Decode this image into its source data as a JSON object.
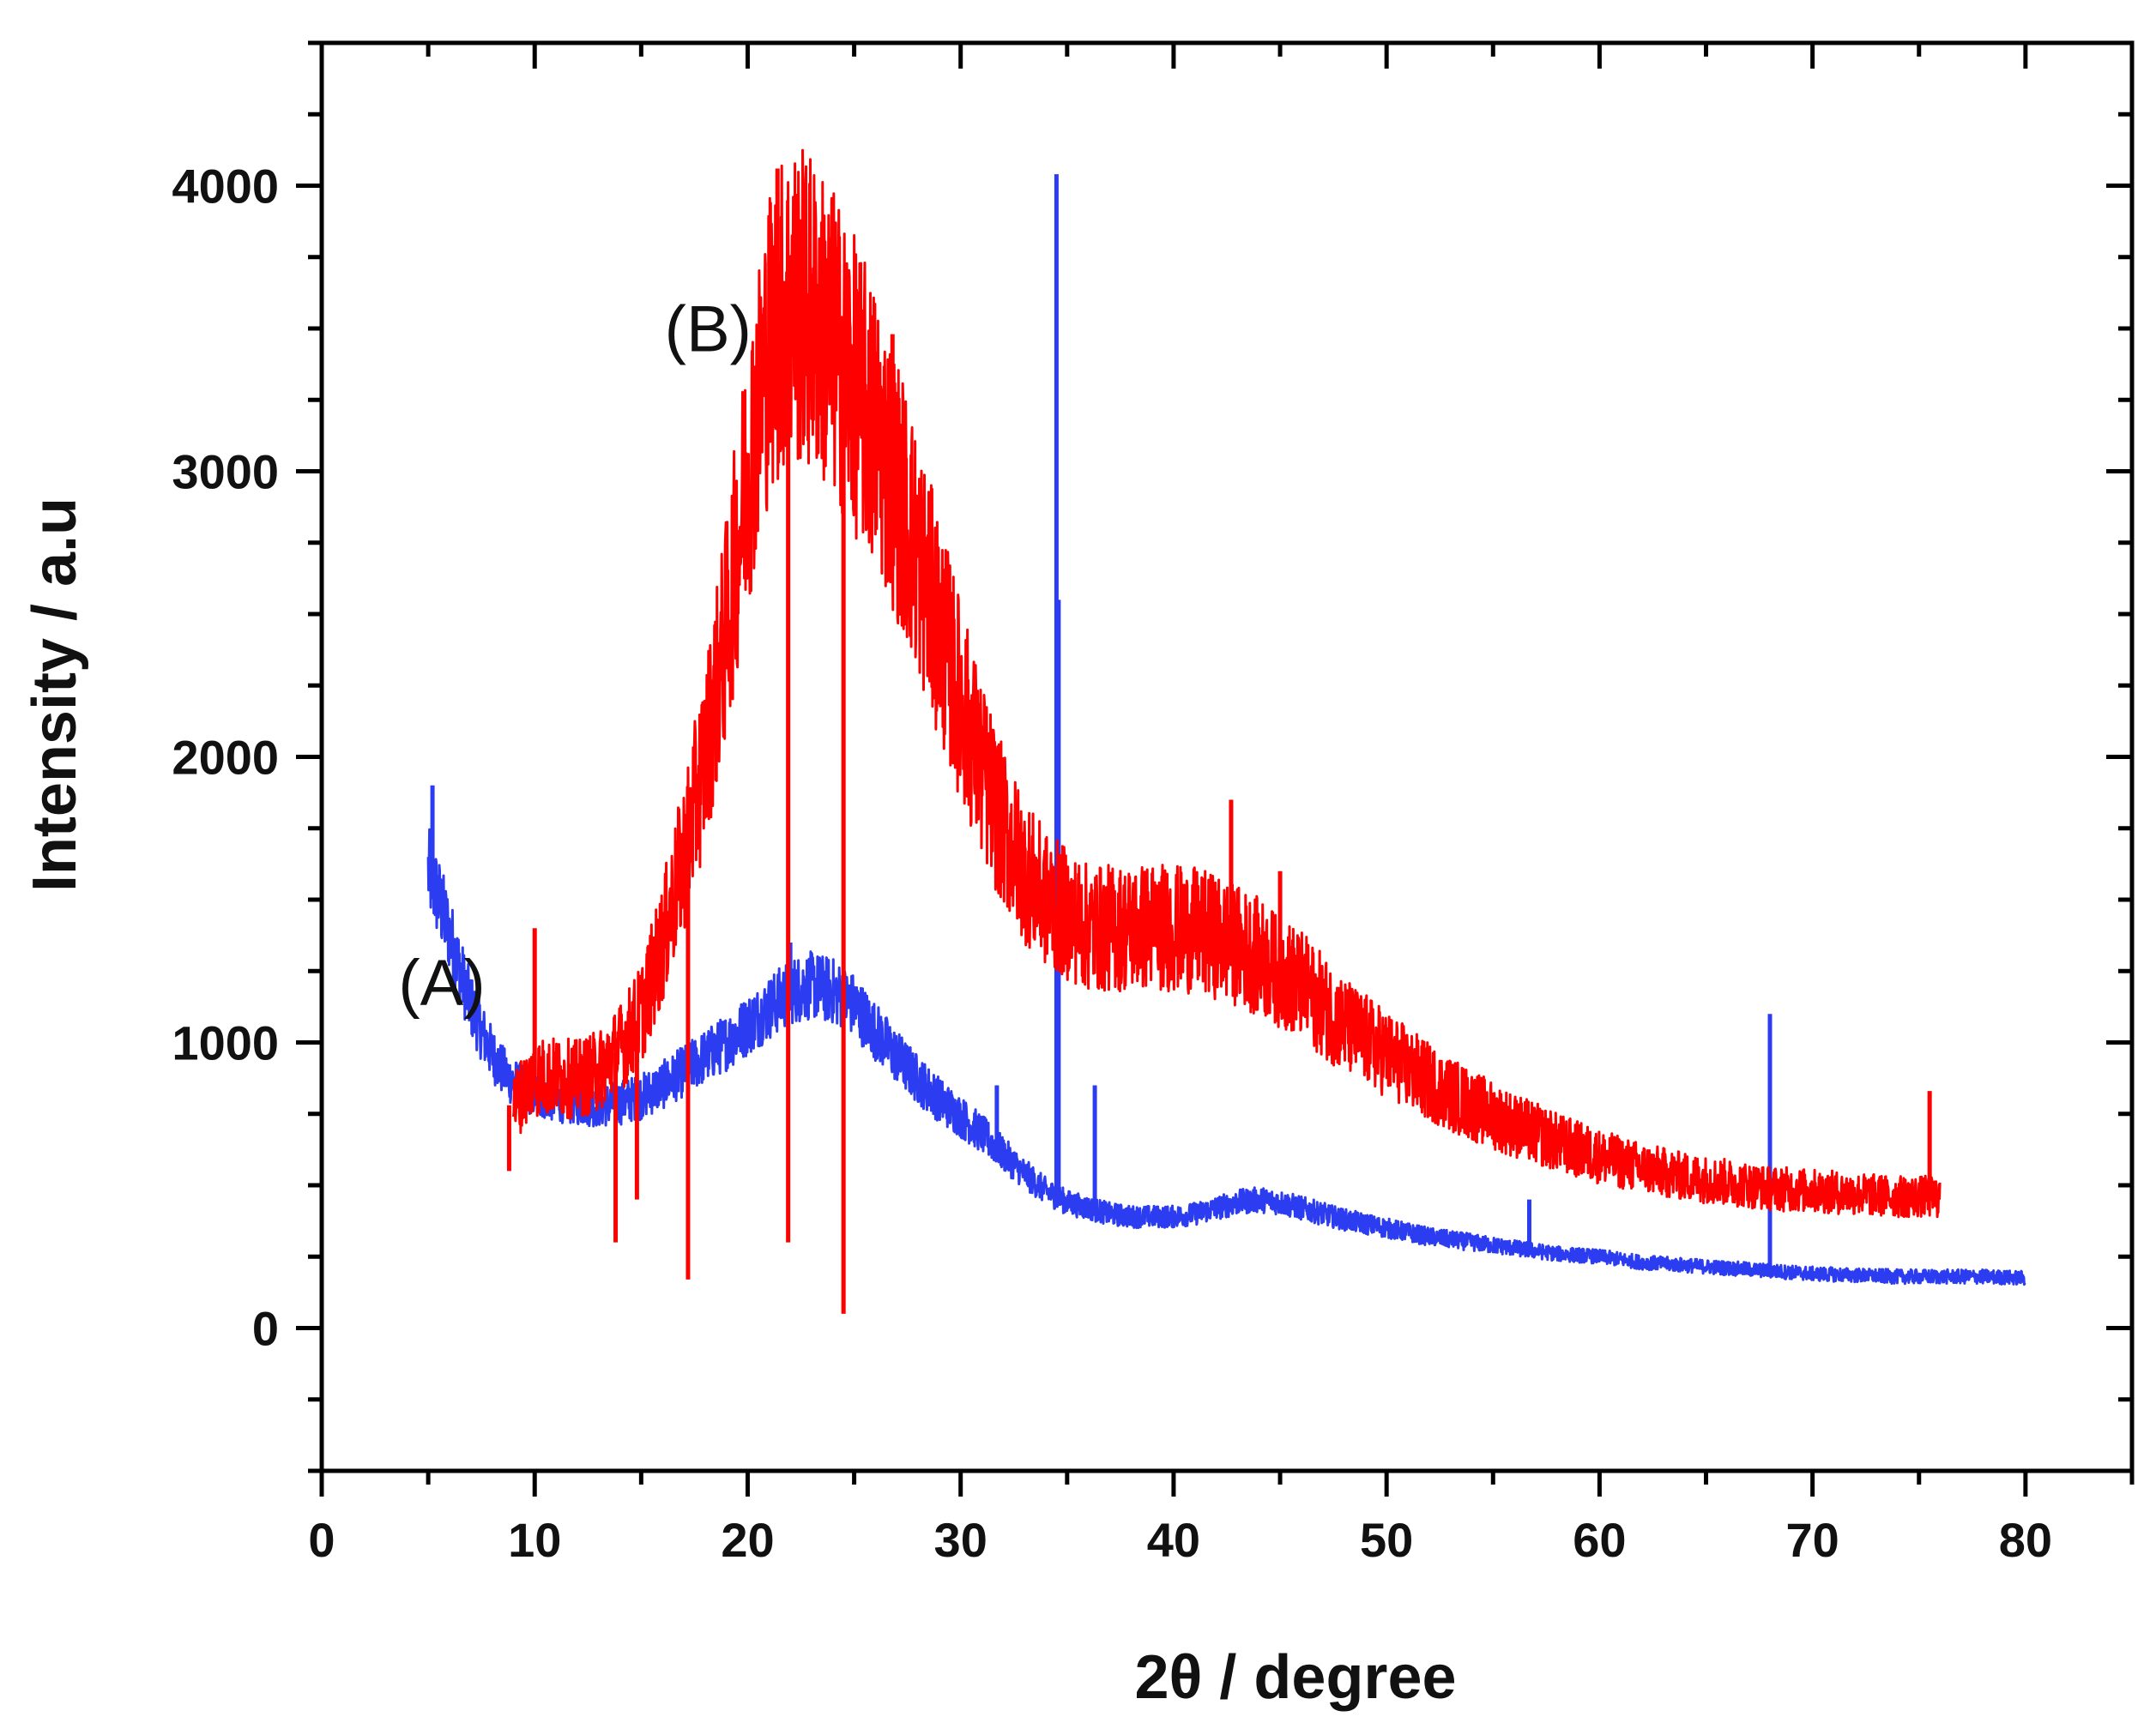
{
  "chart_data": {
    "type": "line",
    "title": "",
    "xlabel": "2θ / degree",
    "ylabel": "Intensity / a.u",
    "xlim": [
      0,
      85
    ],
    "ylim": [
      -500,
      4500
    ],
    "xticks": [
      "0",
      "10",
      "20",
      "30",
      "40",
      "50",
      "60",
      "70",
      "80"
    ],
    "yticks": [
      "0",
      "1000",
      "2000",
      "3000",
      "4000"
    ],
    "grid": false,
    "annotations": [
      {
        "text": "(A)",
        "x": 3.6,
        "y": 1130
      },
      {
        "text": "(B)",
        "x": 16.1,
        "y": 3420
      }
    ],
    "series": [
      {
        "name": "(A)",
        "color": "#2c3cf0",
        "points": [
          [
            5,
            1600
          ],
          [
            5.5,
            1500
          ],
          [
            6,
            1380
          ],
          [
            6.5,
            1250
          ],
          [
            7,
            1130
          ],
          [
            7.5,
            1040
          ],
          [
            8,
            960
          ],
          [
            8.5,
            900
          ],
          [
            9,
            860
          ],
          [
            10,
            820
          ],
          [
            11,
            800
          ],
          [
            12,
            790
          ],
          [
            13,
            780
          ],
          [
            14,
            790
          ],
          [
            15,
            810
          ],
          [
            16,
            850
          ],
          [
            17,
            900
          ],
          [
            18,
            950
          ],
          [
            19,
            1000
          ],
          [
            20,
            1060
          ],
          [
            21,
            1120
          ],
          [
            22,
            1180
          ],
          [
            23,
            1200
          ],
          [
            24,
            1180
          ],
          [
            25,
            1130
          ],
          [
            26,
            1040
          ],
          [
            27,
            950
          ],
          [
            28,
            870
          ],
          [
            29,
            800
          ],
          [
            30,
            740
          ],
          [
            31,
            680
          ],
          [
            32,
            610
          ],
          [
            33,
            540
          ],
          [
            34,
            480
          ],
          [
            35,
            440
          ],
          [
            36,
            420
          ],
          [
            37,
            400
          ],
          [
            38,
            390
          ],
          [
            39,
            390
          ],
          [
            40,
            390
          ],
          [
            41,
            400
          ],
          [
            42,
            420
          ],
          [
            43,
            440
          ],
          [
            44,
            450
          ],
          [
            45,
            440
          ],
          [
            46,
            420
          ],
          [
            47,
            400
          ],
          [
            48,
            380
          ],
          [
            50,
            350
          ],
          [
            52,
            320
          ],
          [
            54,
            300
          ],
          [
            56,
            280
          ],
          [
            58,
            260
          ],
          [
            60,
            250
          ],
          [
            62,
            230
          ],
          [
            64,
            220
          ],
          [
            66,
            210
          ],
          [
            68,
            200
          ],
          [
            70,
            190
          ],
          [
            72,
            185
          ],
          [
            74,
            180
          ],
          [
            76,
            180
          ],
          [
            78,
            180
          ],
          [
            80,
            175
          ]
        ],
        "spikes": [
          [
            5.2,
            1900
          ],
          [
            17.3,
            1000
          ],
          [
            22,
            1350
          ],
          [
            31.7,
            850
          ],
          [
            34.5,
            4040
          ],
          [
            34.6,
            2550
          ],
          [
            36.3,
            850
          ],
          [
            56.7,
            450
          ],
          [
            68,
            1100
          ]
        ]
      },
      {
        "name": "(B)",
        "color": "#ff0000",
        "points": [
          [
            9,
            780
          ],
          [
            10,
            880
          ],
          [
            11,
            880
          ],
          [
            12,
            870
          ],
          [
            13,
            900
          ],
          [
            14,
            980
          ],
          [
            15,
            1100
          ],
          [
            16,
            1350
          ],
          [
            17,
            1650
          ],
          [
            18,
            2000
          ],
          [
            19,
            2450
          ],
          [
            20,
            3000
          ],
          [
            21,
            3450
          ],
          [
            22,
            3600
          ],
          [
            23,
            3550
          ],
          [
            24,
            3450
          ],
          [
            25,
            3300
          ],
          [
            26,
            3150
          ],
          [
            27,
            2950
          ],
          [
            28,
            2700
          ],
          [
            29,
            2450
          ],
          [
            30,
            2200
          ],
          [
            31,
            1950
          ],
          [
            32,
            1750
          ],
          [
            33,
            1600
          ],
          [
            34,
            1500
          ],
          [
            35,
            1450
          ],
          [
            36,
            1400
          ],
          [
            37,
            1400
          ],
          [
            38,
            1400
          ],
          [
            39,
            1410
          ],
          [
            40,
            1400
          ],
          [
            41,
            1390
          ],
          [
            42,
            1370
          ],
          [
            43,
            1340
          ],
          [
            44,
            1300
          ],
          [
            45,
            1250
          ],
          [
            46,
            1200
          ],
          [
            47,
            1130
          ],
          [
            48,
            1060
          ],
          [
            50,
            960
          ],
          [
            52,
            860
          ],
          [
            54,
            780
          ],
          [
            56,
            710
          ],
          [
            58,
            650
          ],
          [
            60,
            600
          ],
          [
            62,
            560
          ],
          [
            64,
            530
          ],
          [
            66,
            510
          ],
          [
            68,
            490
          ],
          [
            70,
            480
          ],
          [
            72,
            470
          ],
          [
            74,
            460
          ],
          [
            76,
            460
          ]
        ],
        "spikes": [
          [
            8.8,
            550
          ],
          [
            10,
            1400
          ],
          [
            13.8,
            300
          ],
          [
            14.8,
            450
          ],
          [
            17.2,
            170
          ],
          [
            21.4,
            4060
          ],
          [
            21.9,
            300
          ],
          [
            24.5,
            50
          ],
          [
            26.8,
            3480
          ],
          [
            42.7,
            1850
          ],
          [
            45,
            1600
          ],
          [
            75.5,
            830
          ]
        ]
      }
    ]
  }
}
